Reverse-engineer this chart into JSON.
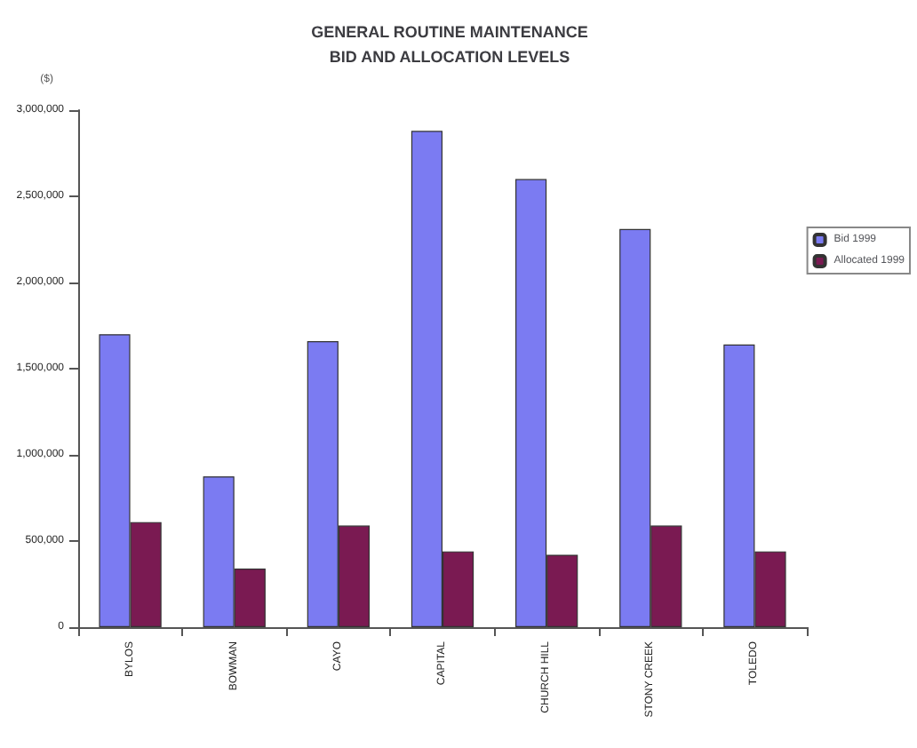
{
  "chart_data": {
    "type": "bar",
    "title": "GENERAL ROUTINE MAINTENANCE\nBID AND ALLOCATION LEVELS",
    "ylabel": "($)",
    "categories": [
      "BYLOS",
      "BOWMAN",
      "CAYO",
      "CAPITAL",
      "CHURCH HILL",
      "STONY CREEK",
      "TOLEDO"
    ],
    "series": [
      {
        "name": "Bid 1999",
        "color": "#7b7bf2",
        "values": [
          1700000,
          875000,
          1660000,
          2880000,
          2600000,
          2310000,
          1640000
        ]
      },
      {
        "name": "Allocated 1999",
        "color": "#7a1a52",
        "values": [
          610000,
          340000,
          590000,
          440000,
          420000,
          590000,
          440000
        ]
      }
    ],
    "ylim": [
      0,
      3000000
    ],
    "yticks": [
      {
        "value": 0,
        "label": "0"
      },
      {
        "value": 500000,
        "label": "500,000"
      },
      {
        "value": 1000000,
        "label": "1,000,000"
      },
      {
        "value": 1500000,
        "label": "1,500,000"
      },
      {
        "value": 2000000,
        "label": "2,000,000"
      },
      {
        "value": 2500000,
        "label": "2,500,000"
      },
      {
        "value": 3000000,
        "label": "3,000,000"
      }
    ],
    "grid": false,
    "legend": "right"
  }
}
